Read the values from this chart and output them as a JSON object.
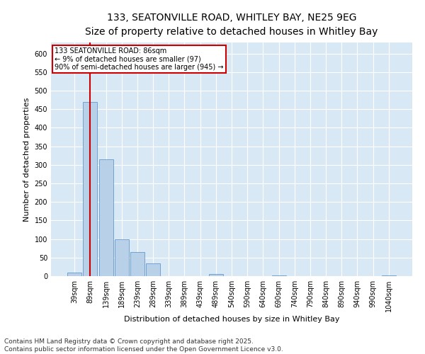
{
  "title_line1": "133, SEATONVILLE ROAD, WHITLEY BAY, NE25 9EG",
  "title_line2": "Size of property relative to detached houses in Whitley Bay",
  "xlabel": "Distribution of detached houses by size in Whitley Bay",
  "ylabel": "Number of detached properties",
  "bar_color": "#b8d0e8",
  "bar_edge_color": "#6699cc",
  "annotation_text": "133 SEATONVILLE ROAD: 86sqm\n← 9% of detached houses are smaller (97)\n90% of semi-detached houses are larger (945) →",
  "vline_color": "#cc0000",
  "annotation_box_color": "#cc0000",
  "background_color": "#d8e8f4",
  "categories": [
    "39sqm",
    "89sqm",
    "139sqm",
    "189sqm",
    "239sqm",
    "289sqm",
    "339sqm",
    "389sqm",
    "439sqm",
    "489sqm",
    "540sqm",
    "590sqm",
    "640sqm",
    "690sqm",
    "740sqm",
    "790sqm",
    "840sqm",
    "890sqm",
    "940sqm",
    "990sqm",
    "1040sqm"
  ],
  "values": [
    10,
    470,
    315,
    100,
    65,
    35,
    0,
    0,
    0,
    5,
    0,
    0,
    0,
    2,
    0,
    0,
    0,
    0,
    0,
    0,
    2
  ],
  "ylim": [
    0,
    630
  ],
  "footer_line1": "Contains HM Land Registry data © Crown copyright and database right 2025.",
  "footer_line2": "Contains public sector information licensed under the Open Government Licence v3.0.",
  "footer_fontsize": 6.5,
  "title_fontsize1": 10,
  "title_fontsize2": 9,
  "axis_label_fontsize": 8,
  "tick_fontsize": 7
}
